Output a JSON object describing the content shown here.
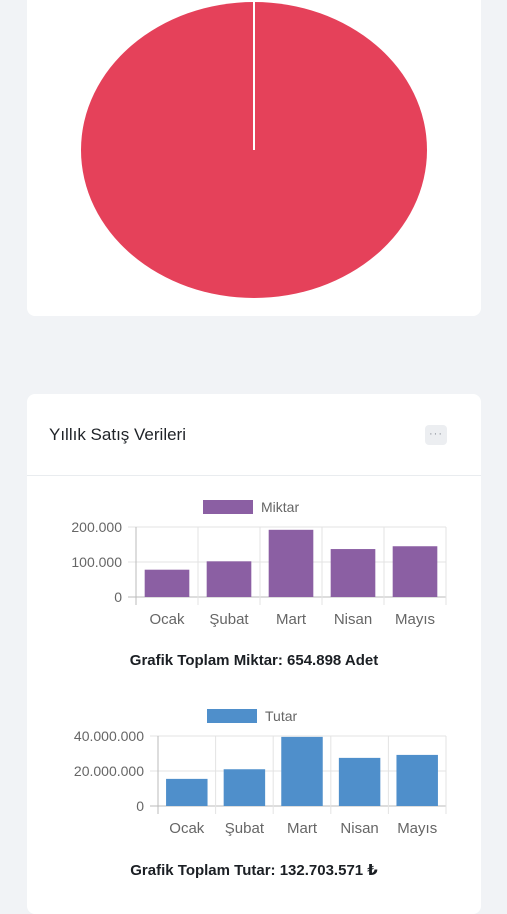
{
  "pie": {
    "color": "#e5415a",
    "divider": "#ffffff"
  },
  "sales_card": {
    "title": "Yıllık Satış Verileri",
    "menu_icon": "ellipsis-icon",
    "menu_label": "···"
  },
  "chart_data": [
    {
      "type": "bar",
      "categories": [
        "Ocak",
        "Şubat",
        "Mart",
        "Nisan",
        "Mayıs"
      ],
      "series": [
        {
          "name": "Miktar",
          "values": [
            78000,
            102000,
            192000,
            137000,
            145000
          ],
          "color": "#8b5fa3"
        }
      ],
      "ylim": [
        0,
        200000
      ],
      "yticks": [
        "0",
        "100.000",
        "200.000"
      ],
      "legend": "top"
    },
    {
      "type": "bar",
      "categories": [
        "Ocak",
        "Şubat",
        "Mart",
        "Nisan",
        "Mayıs"
      ],
      "series": [
        {
          "name": "Tutar",
          "values": [
            15500000,
            21000000,
            39500000,
            27500000,
            29200000
          ],
          "color": "#4f8fcb"
        }
      ],
      "ylim": [
        0,
        40000000
      ],
      "yticks": [
        "0",
        "20.000.000",
        "40.000.000"
      ],
      "legend": "top"
    }
  ],
  "totals": {
    "miktar": "Grafik Toplam Miktar: 654.898 Adet",
    "tutar": "Grafik Toplam Tutar: 132.703.571 ₺"
  }
}
